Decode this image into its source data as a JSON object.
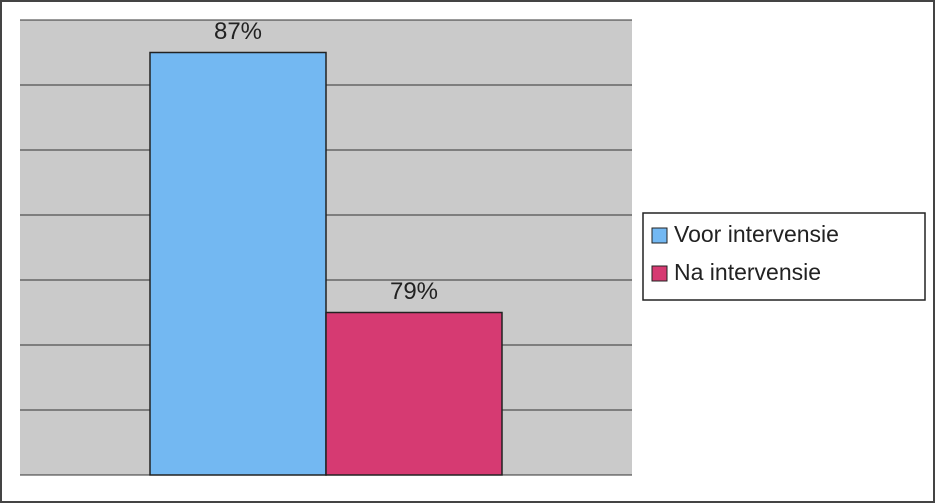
{
  "chart_data": {
    "type": "bar",
    "categories": [
      null
    ],
    "series": [
      {
        "name": "Voor intervensie",
        "color": "#73b8f2",
        "values": [
          87
        ],
        "value_labels": [
          "87%"
        ]
      },
      {
        "name": "Na intervensie",
        "color": "#d63a72",
        "values": [
          79
        ],
        "value_labels": [
          "79%"
        ]
      }
    ],
    "ylim": [
      74,
      88
    ],
    "yticks": [
      74,
      76,
      78,
      80,
      82,
      84,
      86,
      88
    ],
    "grid": true,
    "legend": "right"
  }
}
